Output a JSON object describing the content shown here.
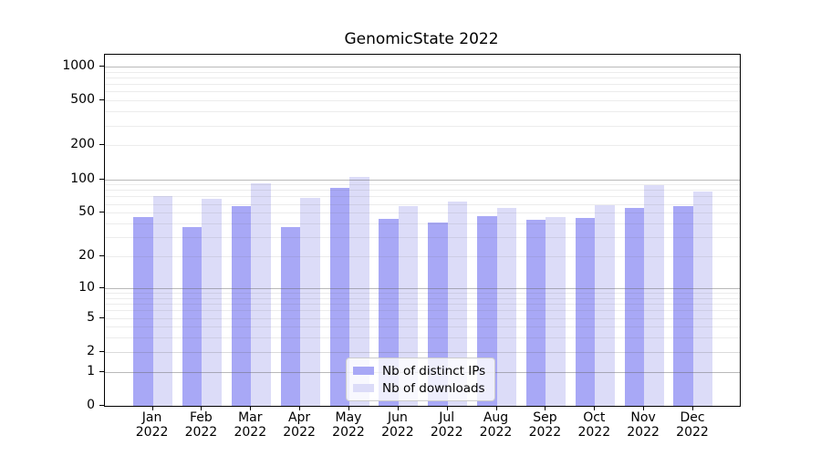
{
  "chart_data": {
    "type": "bar",
    "title": "GenomicState 2022",
    "categories": [
      "Jan",
      "Feb",
      "Mar",
      "Apr",
      "May",
      "Jun",
      "Jul",
      "Aug",
      "Sep",
      "Oct",
      "Nov",
      "Dec"
    ],
    "year": "2022",
    "series": [
      {
        "name": "Nb of distinct IPs",
        "color": "#a8a8f6",
        "values": [
          46,
          37,
          57,
          37,
          83,
          44,
          41,
          47,
          43,
          45,
          55,
          57
        ]
      },
      {
        "name": "Nb of downloads",
        "color": "#dcdcf8",
        "values": [
          70,
          67,
          92,
          68,
          105,
          57,
          63,
          55,
          46,
          58,
          88,
          77
        ]
      }
    ],
    "y_scale": "log10(1+x)",
    "y_ticks": [
      0,
      1,
      2,
      5,
      10,
      20,
      50,
      100,
      200,
      500,
      1000
    ],
    "grid_major": [
      1,
      10,
      100,
      1000
    ],
    "grid_minor": [
      2,
      3,
      4,
      6,
      7,
      8,
      9,
      20,
      30,
      40,
      60,
      70,
      80,
      90,
      200,
      300,
      400,
      600,
      700,
      800,
      900
    ],
    "grid_minor_labeled": [
      2,
      5,
      50,
      500
    ],
    "ylim": [
      0,
      1272
    ],
    "xlabel": "",
    "ylabel": "",
    "grid": "horizontal major+minor, drawn over bars",
    "legend_position": "inside, lower center"
  }
}
